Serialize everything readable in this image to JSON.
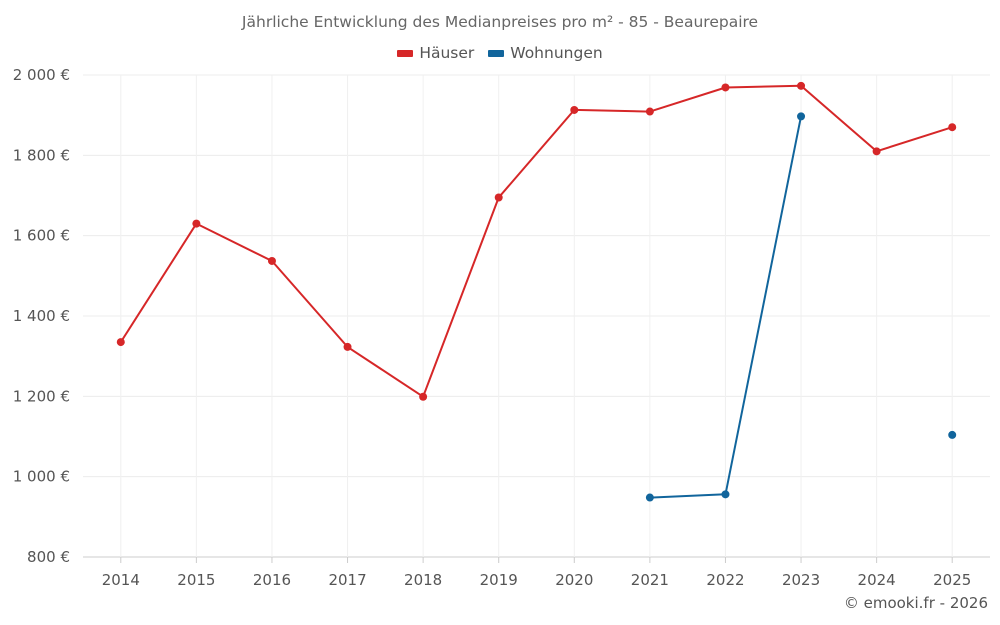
{
  "chart_data": {
    "type": "line",
    "title": "Jährliche Entwicklung des Medianpreises pro m² - 85 - Beaurepaire",
    "categories": [
      "2014",
      "2015",
      "2016",
      "2017",
      "2018",
      "2019",
      "2020",
      "2021",
      "2022",
      "2023",
      "2024",
      "2025"
    ],
    "series": [
      {
        "name": "Häuser",
        "color": "#d62728",
        "values": [
          1335,
          1630,
          1537,
          1323,
          1199,
          1695,
          1913,
          1909,
          1969,
          1973,
          1810,
          1870
        ]
      },
      {
        "name": "Wohnungen",
        "color": "#11659c",
        "values": [
          null,
          null,
          null,
          null,
          null,
          null,
          null,
          948,
          956,
          1897,
          null,
          1104
        ]
      }
    ],
    "ylim": [
      800,
      2000
    ],
    "yticks": [
      800,
      1000,
      1200,
      1400,
      1600,
      1800,
      2000
    ],
    "ytick_labels": [
      "800 €",
      "1 000 €",
      "1 200 €",
      "1 400 €",
      "1 600 €",
      "1 800 €",
      "2 000 €"
    ],
    "xlabel": "",
    "ylabel": "",
    "grid": true,
    "legend_position": "top-center"
  },
  "credit": "© emooki.fr - 2026"
}
